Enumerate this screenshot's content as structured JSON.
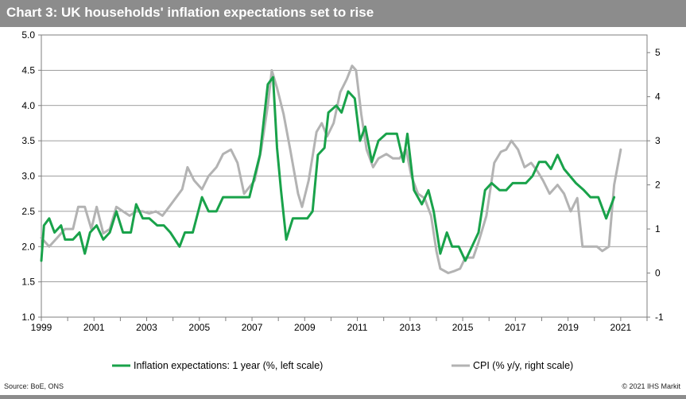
{
  "title": "Chart 3: UK households' inflation expectations set to rise",
  "footer": {
    "source": "Source: BoE, ONS",
    "copyright": "© 2021 IHS Markit"
  },
  "colors": {
    "header": "#8c8c8c",
    "inflation_expectations": "#19a24a",
    "cpi": "#b3b3b3",
    "gridline": "#7f7f7f",
    "axis": "#7f7f7f"
  },
  "chart_data": {
    "type": "line",
    "title": "Chart 3: UK households' inflation expectations set to rise",
    "xlabel": "",
    "ylabel": "",
    "xlim": [
      1999,
      2022
    ],
    "ylim_left": [
      1.0,
      5.0
    ],
    "ylim_right": [
      -1,
      5.4
    ],
    "x_ticks": [
      "1999",
      "2001",
      "2003",
      "2005",
      "2007",
      "2009",
      "2011",
      "2013",
      "2015",
      "2017",
      "2019",
      "2021"
    ],
    "y_ticks_left": [
      "1.0",
      "1.5",
      "2.0",
      "2.5",
      "3.0",
      "3.5",
      "4.0",
      "4.5",
      "5.0"
    ],
    "y_ticks_right": [
      "-1",
      "0",
      "1",
      "2",
      "3",
      "4",
      "5"
    ],
    "grid": "horizontal",
    "legend": "bottom",
    "series": [
      {
        "name": "Inflation expectations: 1 year (%, left scale)",
        "axis": "left",
        "points": [
          [
            1999.0,
            1.8
          ],
          [
            1999.1,
            2.3
          ],
          [
            1999.3,
            2.4
          ],
          [
            1999.5,
            2.2
          ],
          [
            1999.75,
            2.3
          ],
          [
            1999.9,
            2.1
          ],
          [
            2000.2,
            2.1
          ],
          [
            2000.45,
            2.2
          ],
          [
            2000.65,
            1.9
          ],
          [
            2000.85,
            2.2
          ],
          [
            2001.1,
            2.3
          ],
          [
            2001.35,
            2.1
          ],
          [
            2001.6,
            2.2
          ],
          [
            2001.85,
            2.5
          ],
          [
            2002.1,
            2.2
          ],
          [
            2002.4,
            2.2
          ],
          [
            2002.6,
            2.6
          ],
          [
            2002.85,
            2.4
          ],
          [
            2003.1,
            2.4
          ],
          [
            2003.4,
            2.3
          ],
          [
            2003.65,
            2.3
          ],
          [
            2003.9,
            2.2
          ],
          [
            2004.25,
            2.0
          ],
          [
            2004.45,
            2.2
          ],
          [
            2004.75,
            2.2
          ],
          [
            2005.1,
            2.7
          ],
          [
            2005.35,
            2.5
          ],
          [
            2005.65,
            2.5
          ],
          [
            2005.9,
            2.7
          ],
          [
            2006.2,
            2.7
          ],
          [
            2006.5,
            2.7
          ],
          [
            2006.75,
            2.7
          ],
          [
            2006.9,
            2.7
          ],
          [
            2007.3,
            3.3
          ],
          [
            2007.6,
            4.3
          ],
          [
            2007.8,
            4.4
          ],
          [
            2007.95,
            3.4
          ],
          [
            2008.1,
            2.8
          ],
          [
            2008.3,
            2.1
          ],
          [
            2008.55,
            2.4
          ],
          [
            2008.85,
            2.4
          ],
          [
            2009.1,
            2.4
          ],
          [
            2009.3,
            2.5
          ],
          [
            2009.5,
            3.3
          ],
          [
            2009.75,
            3.4
          ],
          [
            2009.9,
            3.9
          ],
          [
            2010.2,
            4.0
          ],
          [
            2010.4,
            3.9
          ],
          [
            2010.65,
            4.2
          ],
          [
            2010.9,
            4.1
          ],
          [
            2011.1,
            3.5
          ],
          [
            2011.3,
            3.7
          ],
          [
            2011.55,
            3.2
          ],
          [
            2011.8,
            3.5
          ],
          [
            2012.1,
            3.6
          ],
          [
            2012.3,
            3.6
          ],
          [
            2012.5,
            3.6
          ],
          [
            2012.75,
            3.2
          ],
          [
            2012.9,
            3.6
          ],
          [
            2013.15,
            2.8
          ],
          [
            2013.45,
            2.6
          ],
          [
            2013.7,
            2.8
          ],
          [
            2013.9,
            2.5
          ],
          [
            2014.15,
            1.9
          ],
          [
            2014.4,
            2.2
          ],
          [
            2014.6,
            2.0
          ],
          [
            2014.85,
            2.0
          ],
          [
            2015.1,
            1.8
          ],
          [
            2015.35,
            2.0
          ],
          [
            2015.6,
            2.2
          ],
          [
            2015.85,
            2.8
          ],
          [
            2016.1,
            2.9
          ],
          [
            2016.4,
            2.8
          ],
          [
            2016.65,
            2.8
          ],
          [
            2016.9,
            2.9
          ],
          [
            2017.2,
            2.9
          ],
          [
            2017.4,
            2.9
          ],
          [
            2017.65,
            3.0
          ],
          [
            2017.9,
            3.2
          ],
          [
            2018.15,
            3.2
          ],
          [
            2018.35,
            3.1
          ],
          [
            2018.6,
            3.3
          ],
          [
            2018.85,
            3.1
          ],
          [
            2019.3,
            2.9
          ],
          [
            2019.6,
            2.8
          ],
          [
            2019.85,
            2.7
          ],
          [
            2020.15,
            2.7
          ],
          [
            2020.45,
            2.4
          ],
          [
            2020.75,
            2.7
          ]
        ]
      },
      {
        "name": "CPI (% y/y, right scale)",
        "axis": "right",
        "points": [
          [
            1999.0,
            0.8
          ],
          [
            1999.3,
            0.6
          ],
          [
            1999.6,
            0.8
          ],
          [
            1999.9,
            1.0
          ],
          [
            2000.2,
            1.0
          ],
          [
            2000.4,
            1.5
          ],
          [
            2000.65,
            1.5
          ],
          [
            2000.9,
            1.0
          ],
          [
            2001.1,
            1.5
          ],
          [
            2001.35,
            0.9
          ],
          [
            2001.6,
            1.0
          ],
          [
            2001.85,
            1.5
          ],
          [
            2002.1,
            1.4
          ],
          [
            2002.35,
            1.3
          ],
          [
            2002.6,
            1.4
          ],
          [
            2002.85,
            1.4
          ],
          [
            2003.1,
            1.35
          ],
          [
            2003.35,
            1.4
          ],
          [
            2003.6,
            1.3
          ],
          [
            2003.85,
            1.5
          ],
          [
            2004.1,
            1.7
          ],
          [
            2004.35,
            1.9
          ],
          [
            2004.55,
            2.4
          ],
          [
            2004.8,
            2.1
          ],
          [
            2005.1,
            1.9
          ],
          [
            2005.35,
            2.2
          ],
          [
            2005.65,
            2.4
          ],
          [
            2005.9,
            2.7
          ],
          [
            2006.2,
            2.8
          ],
          [
            2006.45,
            2.5
          ],
          [
            2006.7,
            1.8
          ],
          [
            2007.1,
            2.1
          ],
          [
            2007.35,
            2.8
          ],
          [
            2007.6,
            3.8
          ],
          [
            2007.75,
            4.6
          ],
          [
            2007.95,
            4.2
          ],
          [
            2008.2,
            3.6
          ],
          [
            2008.45,
            2.8
          ],
          [
            2008.75,
            1.8
          ],
          [
            2008.9,
            1.5
          ],
          [
            2009.15,
            2.1
          ],
          [
            2009.45,
            3.2
          ],
          [
            2009.65,
            3.4
          ],
          [
            2009.85,
            3.1
          ],
          [
            2010.1,
            3.4
          ],
          [
            2010.35,
            4.1
          ],
          [
            2010.6,
            4.4
          ],
          [
            2010.8,
            4.7
          ],
          [
            2010.95,
            4.6
          ],
          [
            2011.15,
            3.6
          ],
          [
            2011.35,
            2.8
          ],
          [
            2011.6,
            2.4
          ],
          [
            2011.8,
            2.6
          ],
          [
            2012.1,
            2.7
          ],
          [
            2012.35,
            2.6
          ],
          [
            2012.6,
            2.6
          ],
          [
            2012.85,
            2.8
          ],
          [
            2013.05,
            2.2
          ],
          [
            2013.3,
            1.8
          ],
          [
            2013.55,
            1.7
          ],
          [
            2013.8,
            1.3
          ],
          [
            2014.0,
            0.5
          ],
          [
            2014.15,
            0.1
          ],
          [
            2014.45,
            0.0
          ],
          [
            2014.7,
            0.05
          ],
          [
            2014.9,
            0.1
          ],
          [
            2015.1,
            0.35
          ],
          [
            2015.4,
            0.35
          ],
          [
            2015.6,
            0.7
          ],
          [
            2015.9,
            1.3
          ],
          [
            2016.2,
            2.5
          ],
          [
            2016.45,
            2.75
          ],
          [
            2016.65,
            2.8
          ],
          [
            2016.85,
            3.0
          ],
          [
            2017.1,
            2.8
          ],
          [
            2017.35,
            2.4
          ],
          [
            2017.6,
            2.5
          ],
          [
            2017.85,
            2.3
          ],
          [
            2018.05,
            2.1
          ],
          [
            2018.3,
            1.8
          ],
          [
            2018.6,
            2.0
          ],
          [
            2018.85,
            1.8
          ],
          [
            2019.1,
            1.4
          ],
          [
            2019.35,
            1.7
          ],
          [
            2019.55,
            0.6
          ],
          [
            2019.85,
            0.6
          ],
          [
            2020.1,
            0.6
          ],
          [
            2020.3,
            0.5
          ],
          [
            2020.55,
            0.6
          ],
          [
            2020.75,
            2.0
          ],
          [
            2021.0,
            2.8
          ]
        ]
      }
    ]
  }
}
